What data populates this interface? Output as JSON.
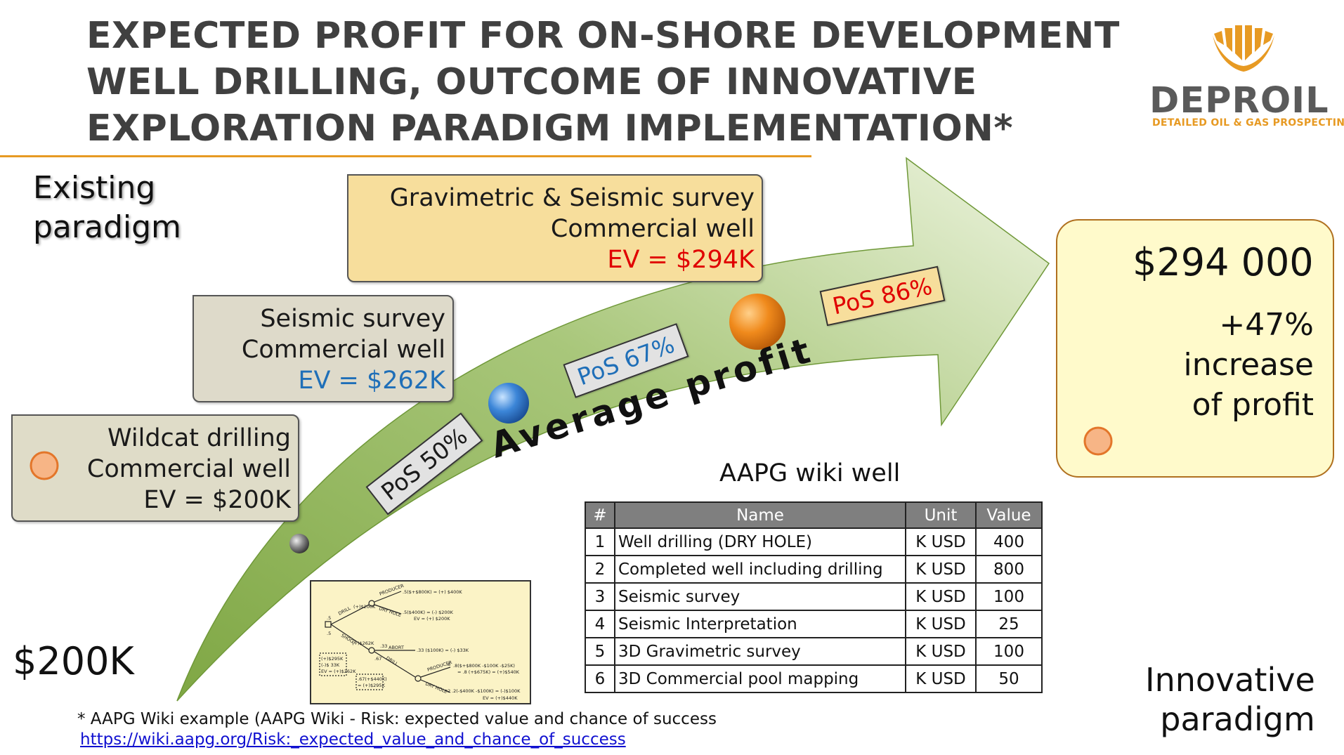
{
  "title_lines": [
    "EXPECTED PROFIT FOR ON-SHORE DEVELOPMENT",
    "WELL DRILLING, OUTCOME OF INNOVATIVE",
    "EXPLORATION PARADIGM IMPLEMENTATION*"
  ],
  "logo": {
    "name": "DEPROIL",
    "tagline": "DETAILED OIL & GAS PROSPECTING",
    "icon": "oil-drop-logo-icon",
    "color": "#E79A23"
  },
  "existing_label": [
    "Existing",
    "paradigm"
  ],
  "innovative_label": [
    "Innovative",
    "paradigm"
  ],
  "start_value": "$200K",
  "stages": [
    {
      "line1": "Wildcat drilling",
      "line2": "Commercial well",
      "ev": "EV = $200K",
      "ev_color": "#1a1a1a"
    },
    {
      "line1": "Seismic survey",
      "line2": "Commercial well",
      "ev": "EV = $262K",
      "ev_color": "#1F6FB8"
    },
    {
      "line1": "Gravimetric & Seismic survey",
      "line2": "Commercial well",
      "ev": "EV = $294K",
      "ev_color": "#E00000"
    }
  ],
  "pos": [
    "PoS 50%",
    "PoS 67%",
    "PoS 86%"
  ],
  "arrow_label": "Average profit",
  "result": {
    "amount": "$294 000",
    "line1": "+47%",
    "line2": "increase",
    "line3": "of profit"
  },
  "table": {
    "title": "AAPG wiki well",
    "headers": [
      "#",
      "Name",
      "Unit",
      "Value"
    ],
    "rows": [
      [
        "1",
        "Well drilling (DRY HOLE)",
        "K USD",
        "400"
      ],
      [
        "2",
        "Completed well including drilling",
        "K USD",
        "800"
      ],
      [
        "3",
        "Seismic survey",
        "K USD",
        "100"
      ],
      [
        "4",
        "Seismic Interpretation",
        "K USD",
        "25"
      ],
      [
        "5",
        "3D Gravimetric survey",
        "K USD",
        "100"
      ],
      [
        "6",
        "3D Commercial pool mapping",
        "K USD",
        "50"
      ]
    ]
  },
  "decision_tree": {
    "branch_labels": [
      "DRILL",
      "SHOOT",
      "PRODUCER",
      "DRY HOLE",
      "ABORT",
      "DRILL",
      "PRODUCER",
      "DRY HOLE"
    ],
    "probabilities": [
      ".5",
      ".5",
      ".33",
      ".67",
      ".8",
      ".2"
    ],
    "node_values": [
      "(+)$200K",
      "(+)$262K"
    ],
    "outcomes": [
      ".5($+$800K) = (+) $400K",
      ".5($400K) = (-) $200K",
      "EV = (+) $200K",
      ".33 ($100K) = (-) $33K",
      ".8($+$800K -$100K -$25K)",
      "= .8 (+$675K) = (+)$540K",
      ".2(-$400K -$100K) = (-)$100K",
      "EV = (+)$440K"
    ],
    "left_box": [
      "(+)$295K",
      "(-)$ 33K",
      "EV = (+)$262K"
    ],
    "mid_box": [
      ".67(+$440K)",
      "= (+)$295K"
    ]
  },
  "footnote": "* AAPG Wiki example (AAPG Wiki - Risk: expected value and chance of success",
  "footnote_link": "https://wiki.aapg.org/Risk:_expected_value_and_chance_of_success",
  "colors": {
    "accent_orange": "#E79A23",
    "arrow_green": "#8DB255",
    "arrow_light": "#EAF2D8",
    "ev_blue": "#1F6FB8",
    "ev_red": "#E00000",
    "result_bg": "#FFFACB",
    "table_header": "#7F7F7F"
  }
}
